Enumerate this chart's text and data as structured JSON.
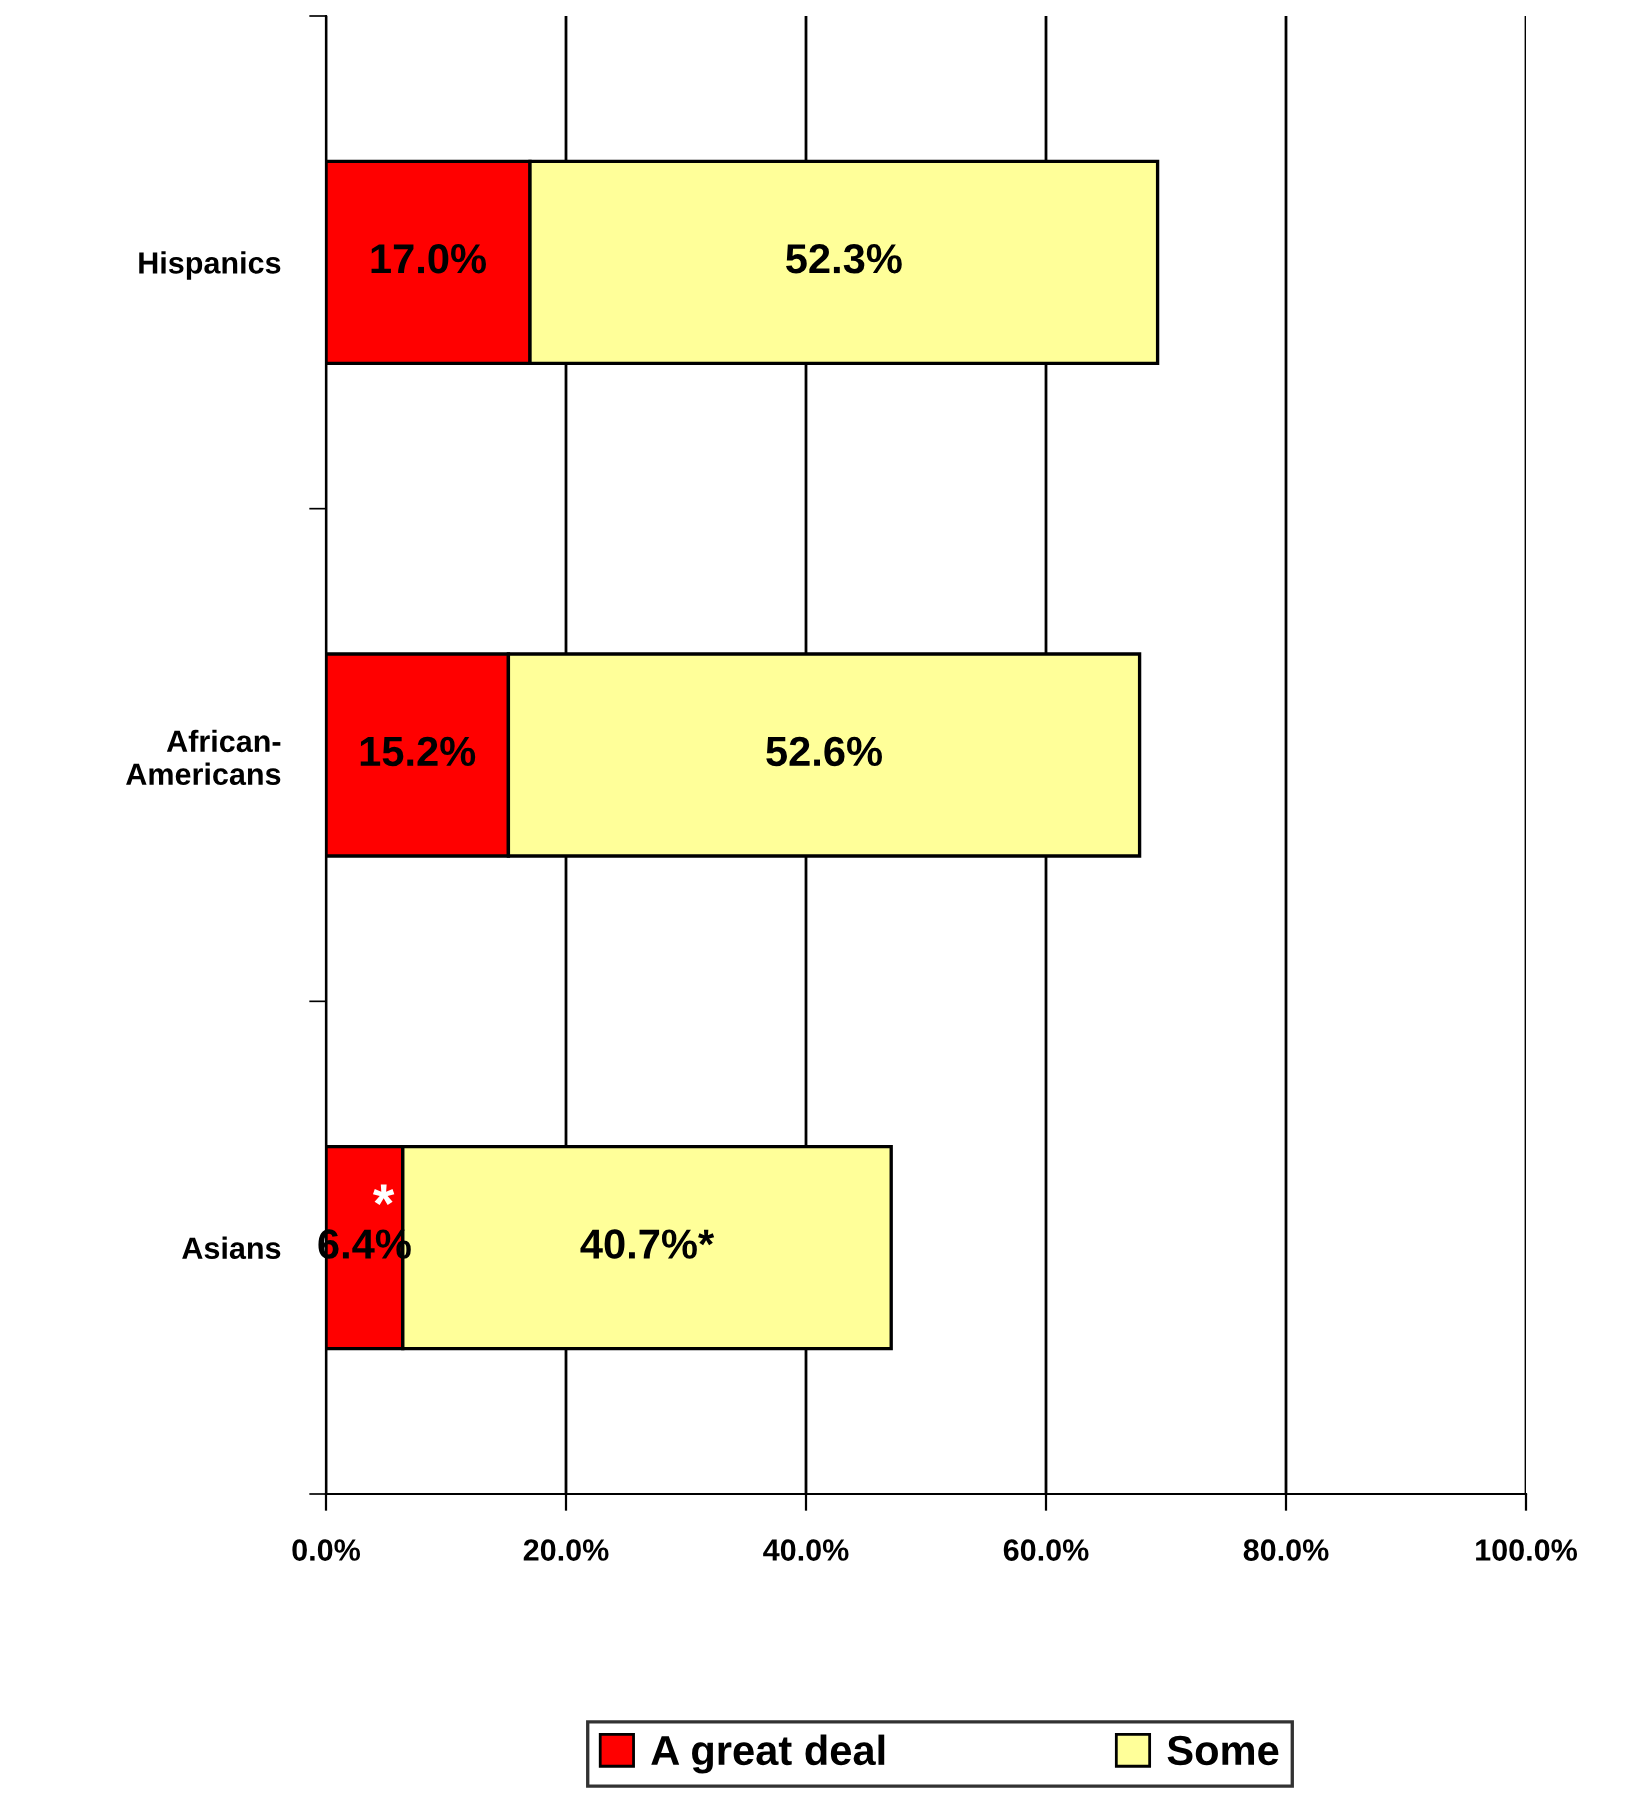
{
  "chart_data": {
    "type": "bar",
    "orientation": "horizontal",
    "stacked": true,
    "categories": [
      "Hispanics",
      "African-\nAmericans",
      "Asians"
    ],
    "series": [
      {
        "name": "A great deal",
        "color": "#ff0000",
        "values": [
          17.0,
          15.2,
          6.4
        ],
        "value_labels": [
          "17.0%",
          "15.2%",
          "6.4%"
        ]
      },
      {
        "name": "Some",
        "color": "#ffff99",
        "values": [
          52.3,
          52.6,
          40.7
        ],
        "value_labels": [
          "52.3%",
          "52.6%",
          "40.7%*"
        ]
      }
    ],
    "xlim": [
      0,
      100
    ],
    "xticks": [
      {
        "value": 0,
        "label": "0.0%"
      },
      {
        "value": 20,
        "label": "20.0%"
      },
      {
        "value": 40,
        "label": "40.0%"
      },
      {
        "value": 60,
        "label": "60.0%"
      },
      {
        "value": 80,
        "label": "80.0%"
      },
      {
        "value": 100,
        "label": "100.0%"
      }
    ],
    "grid": "x",
    "legend": "bottom",
    "annotations": [
      "*"
    ]
  }
}
